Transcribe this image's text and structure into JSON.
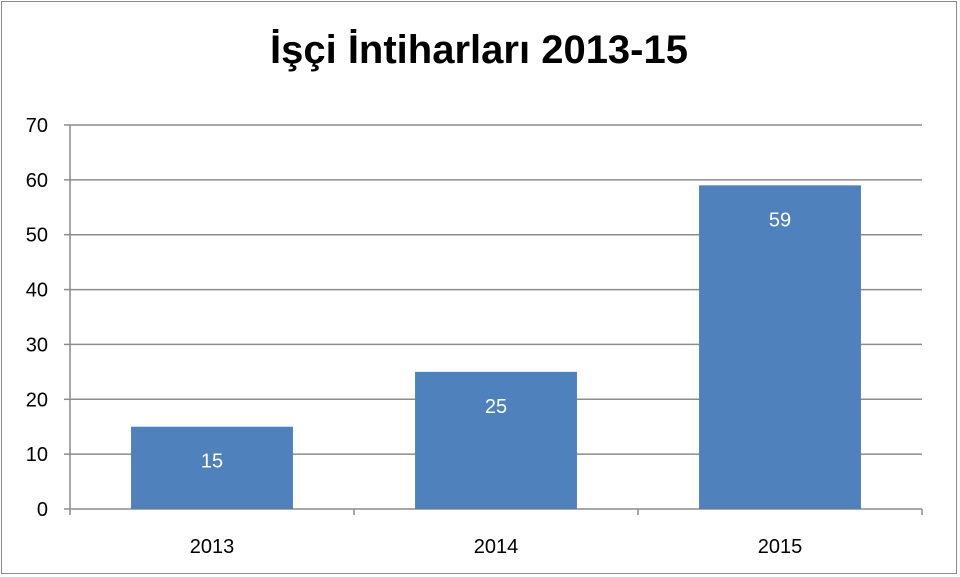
{
  "chart_data": {
    "type": "bar",
    "title": "İşçi İntiharları 2013-15",
    "categories": [
      "2013",
      "2014",
      "2015"
    ],
    "series": [
      {
        "values": [
          15,
          25,
          59
        ],
        "color": "#4f81bd"
      }
    ],
    "data_labels": [
      "15",
      "25",
      "59"
    ],
    "y_ticks": [
      "0",
      "10",
      "20",
      "30",
      "40",
      "50",
      "60",
      "70"
    ],
    "ylim": [
      0,
      70
    ],
    "grid": true,
    "legend": "none"
  }
}
